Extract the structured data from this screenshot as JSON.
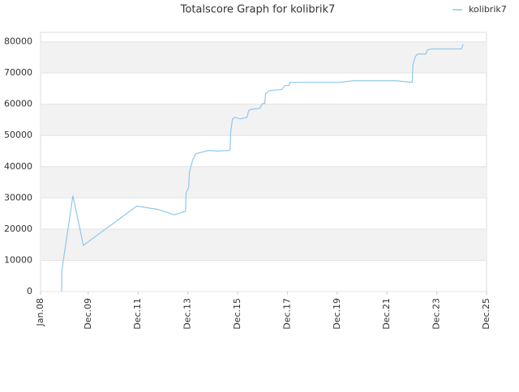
{
  "chart_data": {
    "type": "line",
    "title": "Totalscore Graph for kolibrik7",
    "x": [
      2008.85,
      2008.85,
      2009.3,
      2009.72,
      2011.87,
      2012.72,
      2013.37,
      2013.82,
      2013.85,
      2013.95,
      2013.98,
      2014.11,
      2014.24,
      2014.37,
      2014.76,
      2015.09,
      2015.61,
      2015.64,
      2015.71,
      2015.8,
      2016.03,
      2016.29,
      2016.36,
      2016.46,
      2016.81,
      2016.91,
      2017.01,
      2017.04,
      2017.2,
      2017.69,
      2017.82,
      2017.98,
      2018.02,
      2020.03,
      2020.55,
      2022.31,
      2022.93,
      2022.96,
      2023.06,
      2023.15,
      2023.48,
      2023.54,
      2023.71,
      2024.91,
      2024.98
    ],
    "series": [
      {
        "name": "kolibrik7",
        "color": "#8ec8ee",
        "values": [
          0,
          6500,
          30700,
          14800,
          27400,
          26300,
          24600,
          25700,
          31700,
          33300,
          38200,
          42100,
          44200,
          44400,
          45200,
          45000,
          45200,
          51200,
          55300,
          55800,
          55300,
          55800,
          57900,
          58400,
          58700,
          60200,
          60200,
          63400,
          64400,
          64700,
          66000,
          66000,
          67000,
          67000,
          67500,
          67500,
          67000,
          72700,
          75300,
          76100,
          76100,
          77400,
          77700,
          77700,
          79200
        ]
      }
    ],
    "xlim": [
      2008.0,
      2025.917
    ],
    "xticks": [
      {
        "value": 2008.0,
        "label": "Jan.08"
      },
      {
        "value": 2009.917,
        "label": "Dec.09"
      },
      {
        "value": 2011.917,
        "label": "Dec.11"
      },
      {
        "value": 2013.917,
        "label": "Dec.13"
      },
      {
        "value": 2015.917,
        "label": "Dec.15"
      },
      {
        "value": 2017.917,
        "label": "Dec.17"
      },
      {
        "value": 2019.917,
        "label": "Dec.19"
      },
      {
        "value": 2021.917,
        "label": "Dec.21"
      },
      {
        "value": 2023.917,
        "label": "Dec.23"
      },
      {
        "value": 2025.917,
        "label": "Dec.25"
      }
    ],
    "ylim": [
      0,
      83000
    ],
    "yticks": [
      0,
      10000,
      20000,
      30000,
      40000,
      50000,
      60000,
      70000,
      80000
    ],
    "grid": true,
    "legend": "top-right"
  }
}
